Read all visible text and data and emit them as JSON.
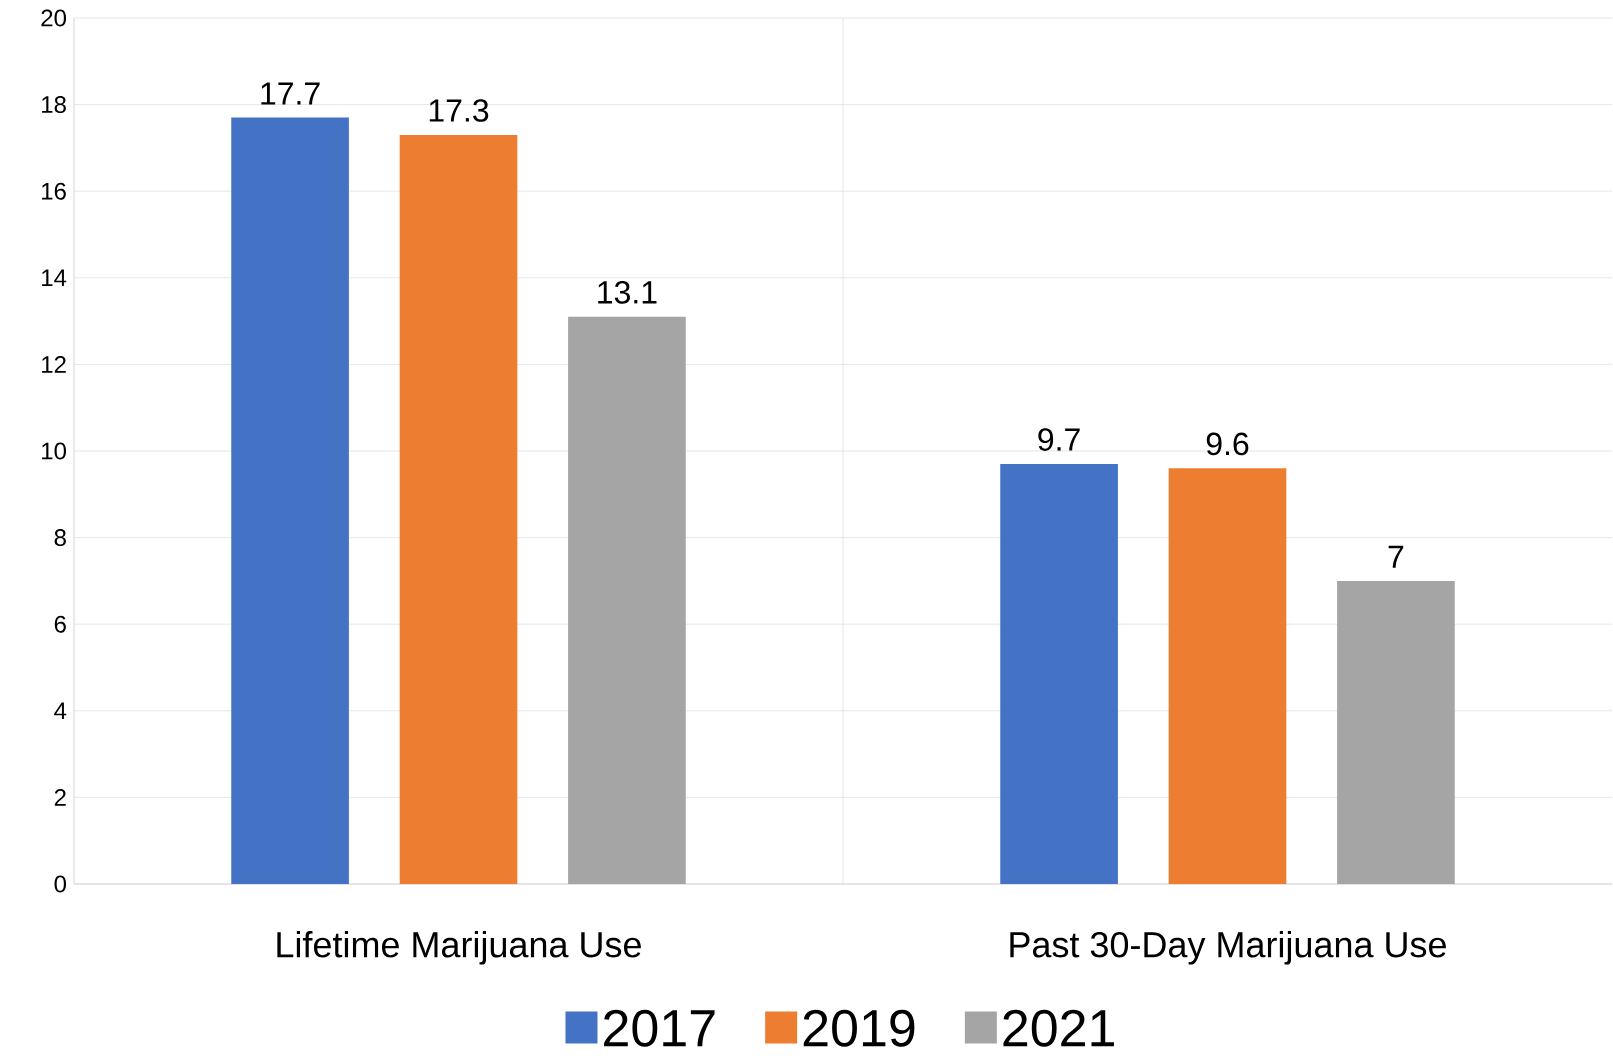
{
  "chart_data": {
    "type": "bar",
    "categories": [
      "Lifetime Marijuana Use",
      "Past 30-Day Marijuana Use"
    ],
    "series": [
      {
        "name": "2017",
        "color": "#4472c4",
        "values": [
          17.7,
          9.7
        ]
      },
      {
        "name": "2019",
        "color": "#ed7d31",
        "values": [
          17.3,
          9.6
        ]
      },
      {
        "name": "2021",
        "color": "#a5a5a5",
        "values": [
          13.1,
          7
        ]
      }
    ],
    "ylim": [
      0,
      20
    ],
    "yticks": [
      0,
      2,
      4,
      6,
      8,
      10,
      12,
      14,
      16,
      18,
      20
    ],
    "grid": true,
    "legend": "bottom",
    "data_labels": true
  }
}
